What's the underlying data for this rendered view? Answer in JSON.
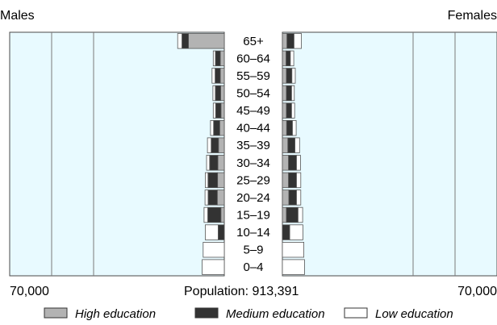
{
  "labels": {
    "males": "Males",
    "females": "Females",
    "left_axis": "70,000",
    "right_axis": "70,000",
    "population": "Population: 913,391"
  },
  "colors": {
    "panel_bg": "#e8faff",
    "panel_border": "#4a4a4a",
    "gridline": "#7a7a7a",
    "high": "#b3b3b3",
    "medium": "#333333",
    "low": "#ffffff"
  },
  "chart_data": {
    "type": "bar",
    "subtype": "population-pyramid",
    "categories": [
      "65+",
      "60–64",
      "55–59",
      "50–54",
      "45–49",
      "40–44",
      "35–39",
      "30–34",
      "25–29",
      "20–24",
      "15–19",
      "10–14",
      "5–9",
      "0–4"
    ],
    "xlim": [
      0,
      70000
    ],
    "total_population": 913391,
    "legend_position": "bottom",
    "legend": [
      "High education",
      "Medium education",
      "Low education"
    ],
    "males": {
      "series": [
        {
          "name": "High education",
          "values": [
            11700,
            1300,
            1300,
            1200,
            1100,
            1500,
            1900,
            2100,
            2200,
            2300,
            1100,
            0,
            0,
            0
          ]
        },
        {
          "name": "Medium education",
          "values": [
            2100,
            1600,
            1700,
            1700,
            1700,
            2000,
            2400,
            2700,
            3100,
            3000,
            4300,
            2000,
            0,
            0
          ]
        },
        {
          "name": "Low education",
          "values": [
            1400,
            700,
            1000,
            800,
            800,
            1000,
            1200,
            1000,
            900,
            1000,
            1200,
            4200,
            6900,
            7200
          ]
        }
      ]
    },
    "females": {
      "series": [
        {
          "name": "High education",
          "values": [
            1500,
            1200,
            1300,
            1300,
            1300,
            1400,
            1800,
            2000,
            2000,
            2100,
            1300,
            0,
            0,
            0
          ]
        },
        {
          "name": "Medium education",
          "values": [
            2300,
            1400,
            1800,
            1700,
            1700,
            1900,
            2300,
            2600,
            2600,
            2500,
            3800,
            2400,
            0,
            0
          ]
        },
        {
          "name": "Low education",
          "values": [
            2400,
            1100,
            1100,
            900,
            1000,
            1200,
            1500,
            1300,
            1400,
            1400,
            1500,
            4300,
            7000,
            7200
          ]
        }
      ]
    }
  }
}
